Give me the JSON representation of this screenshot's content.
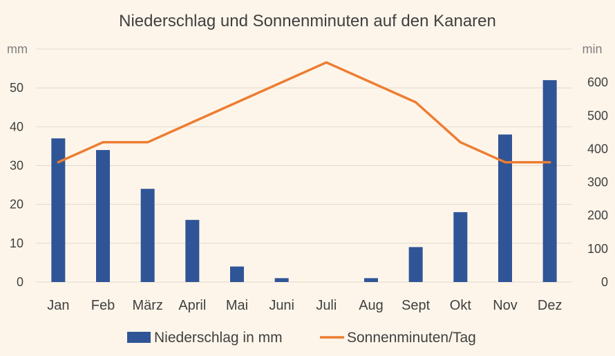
{
  "chart_data": {
    "type": "bar",
    "title": "Niederschlag und Sonnenminuten auf den Kanaren",
    "categories": [
      "Jan",
      "Feb",
      "März",
      "April",
      "Mai",
      "Juni",
      "Juli",
      "Aug",
      "Sept",
      "Okt",
      "Nov",
      "Dez"
    ],
    "y_left": {
      "unit": "mm",
      "ticks": [
        0,
        10,
        20,
        30,
        40,
        50
      ],
      "ylim": [
        0,
        60
      ]
    },
    "y_right": {
      "unit": "min",
      "ticks": [
        0,
        100,
        200,
        300,
        400,
        500,
        600
      ],
      "ylim": [
        0,
        700
      ]
    },
    "grid": true,
    "legend_position": "bottom",
    "series": [
      {
        "name": "Niederschlag in mm",
        "type": "bar",
        "axis": "left",
        "color": "#2f5597",
        "values": [
          37,
          34,
          24,
          16,
          4,
          1,
          0,
          1,
          9,
          18,
          38,
          52
        ]
      },
      {
        "name": "Sonnenminuten/Tag",
        "type": "line",
        "axis": "right",
        "color": "#ed7d31",
        "values": [
          360,
          420,
          420,
          480,
          540,
          600,
          660,
          600,
          540,
          420,
          360,
          360
        ]
      }
    ]
  }
}
